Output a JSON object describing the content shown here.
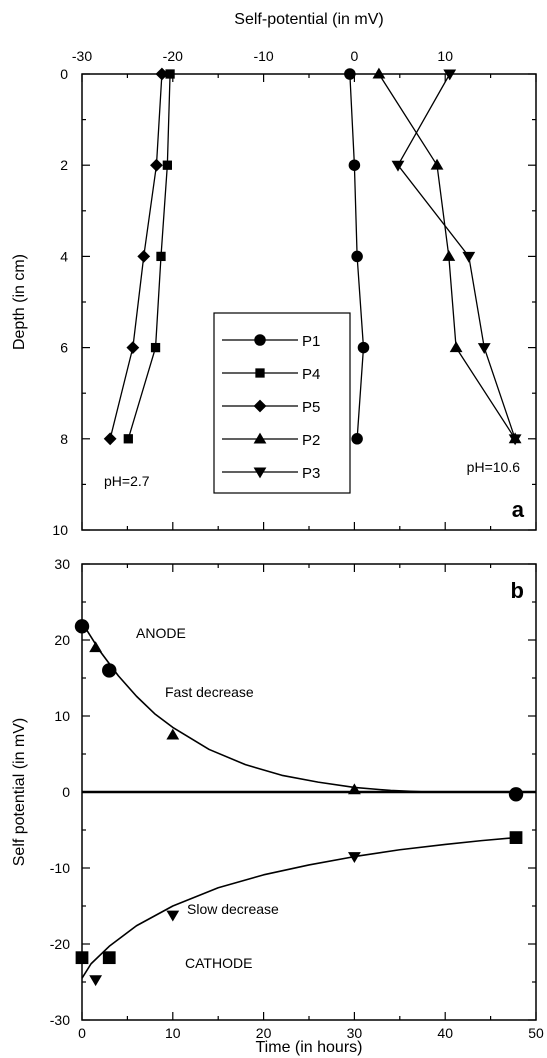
{
  "chart_data": [
    {
      "type": "line",
      "panel": "a",
      "xlabel": "Self-potential (in mV)",
      "ylabel": "Depth (in cm)",
      "xlim": [
        -30,
        20
      ],
      "ylim": [
        0,
        10
      ],
      "x_ticks": [
        -30,
        -20,
        -10,
        0,
        10
      ],
      "y_ticks": [
        0,
        2,
        4,
        6,
        8,
        10
      ],
      "y_axis_inverted": true,
      "x_axis_position": "top",
      "legend_placement": "center",
      "series": [
        {
          "name": "P1",
          "marker": "circle",
          "depth": [
            0,
            2,
            4,
            6,
            8
          ],
          "potential": [
            -0.5,
            0,
            0.3,
            1,
            0.3
          ]
        },
        {
          "name": "P4",
          "marker": "square",
          "depth": [
            0,
            2,
            4,
            6,
            8
          ],
          "potential": [
            -20.3,
            -20.6,
            -21.3,
            -21.9,
            -24.9
          ]
        },
        {
          "name": "P5",
          "marker": "diamond",
          "depth": [
            0,
            2,
            4,
            6,
            8
          ],
          "potential": [
            -21.2,
            -21.8,
            -23.2,
            -24.4,
            -26.9
          ]
        },
        {
          "name": "P2",
          "marker": "triangle-up",
          "depth": [
            0,
            2,
            4,
            6,
            8
          ],
          "potential": [
            2.7,
            9.1,
            10.4,
            11.2,
            17.7
          ]
        },
        {
          "name": "P3",
          "marker": "triangle-down",
          "depth": [
            0,
            2,
            4,
            6,
            8
          ],
          "potential": [
            10.5,
            4.8,
            12.6,
            14.3,
            17.7
          ]
        }
      ],
      "annotations": {
        "left": "pH=2.7",
        "right": "pH=10.6"
      }
    },
    {
      "type": "scatter",
      "panel": "b",
      "xlabel": "Time (in hours)",
      "ylabel": "Self potential (in mV)",
      "xlim": [
        0,
        50
      ],
      "ylim": [
        -30,
        30
      ],
      "x_ticks": [
        0,
        10,
        20,
        30,
        40,
        50
      ],
      "y_ticks": [
        -30,
        -20,
        -10,
        0,
        10,
        20,
        30
      ],
      "points": {
        "circle": [
          [
            0,
            21.8
          ],
          [
            3,
            16
          ],
          [
            47.8,
            -0.3
          ]
        ],
        "triangle-up": [
          [
            1.5,
            19
          ],
          [
            10,
            7.5
          ],
          [
            30,
            0.3
          ]
        ],
        "square": [
          [
            0,
            -21.8
          ],
          [
            3,
            -21.8
          ],
          [
            47.8,
            -6
          ]
        ],
        "triangle-down": [
          [
            1.5,
            -24.7
          ],
          [
            10,
            -16.2
          ],
          [
            30,
            -8.5
          ]
        ]
      },
      "curves": {
        "anode": [
          [
            0,
            22.3
          ],
          [
            2,
            18.5
          ],
          [
            4,
            15.3
          ],
          [
            6,
            12.6
          ],
          [
            8,
            10.3
          ],
          [
            10,
            8.5
          ],
          [
            14,
            5.6
          ],
          [
            18,
            3.6
          ],
          [
            22,
            2.2
          ],
          [
            26,
            1.3
          ],
          [
            30,
            0.6
          ],
          [
            34,
            0.2
          ],
          [
            38,
            0
          ],
          [
            48,
            0
          ]
        ],
        "cathode": [
          [
            0,
            -24.5
          ],
          [
            1,
            -22.6
          ],
          [
            3,
            -20.3
          ],
          [
            6,
            -17.6
          ],
          [
            10,
            -15
          ],
          [
            15,
            -12.6
          ],
          [
            20,
            -10.9
          ],
          [
            25,
            -9.6
          ],
          [
            30,
            -8.5
          ],
          [
            35,
            -7.6
          ],
          [
            40,
            -6.9
          ],
          [
            44,
            -6.4
          ],
          [
            47.8,
            -6
          ]
        ],
        "zero_line": [
          [
            0,
            0
          ],
          [
            50,
            0
          ]
        ]
      },
      "annotations": {
        "anode": "ANODE",
        "fast": "Fast decrease",
        "slow": "Slow decrease",
        "cathode": "CATHODE"
      }
    }
  ]
}
